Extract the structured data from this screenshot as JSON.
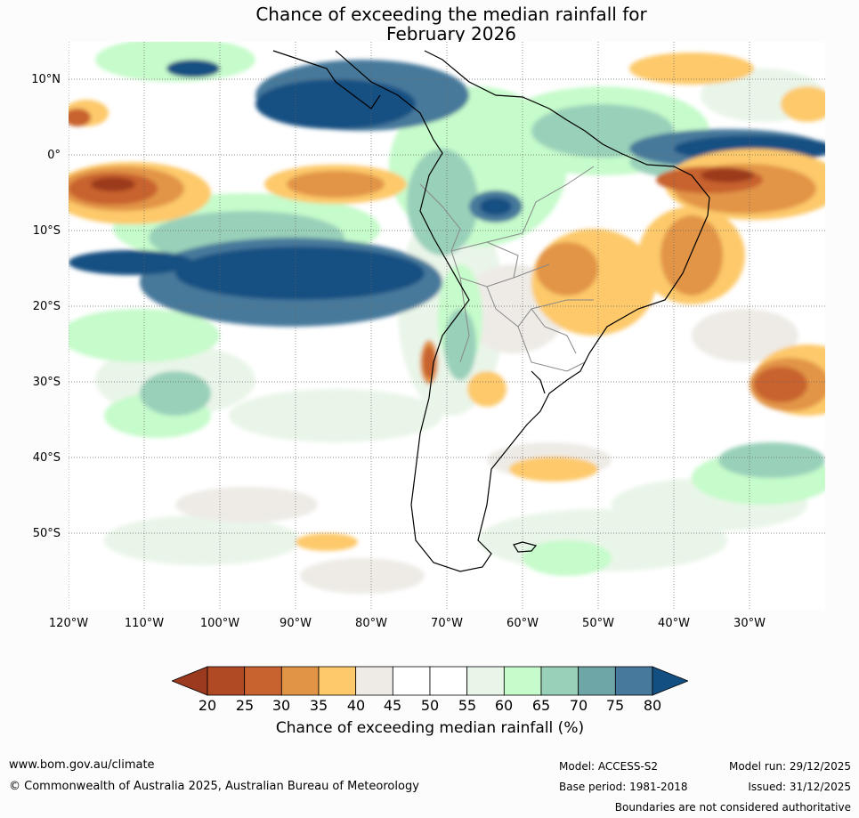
{
  "title": {
    "line1": "Chance of exceeding the median rainfall for",
    "line2": "February 2026"
  },
  "map": {
    "lat_labels": [
      "10°N",
      "0°",
      "10°S",
      "20°S",
      "30°S",
      "40°S",
      "50°S"
    ],
    "lon_labels": [
      "120°W",
      "110°W",
      "100°W",
      "90°W",
      "80°W",
      "70°W",
      "60°W",
      "50°W",
      "40°W",
      "30°W"
    ]
  },
  "colorbar": {
    "ticks": [
      "20",
      "25",
      "30",
      "35",
      "40",
      "45",
      "50",
      "55",
      "60",
      "65",
      "70",
      "75",
      "80"
    ],
    "colors": [
      "#9b3a1f",
      "#b04a24",
      "#c8622e",
      "#e29446",
      "#fdc96b",
      "#eeebe6",
      "#ffffff",
      "#ffffff",
      "#e9f5e8",
      "#c6fbcb",
      "#99d0b9",
      "#6ea6a8",
      "#46799b",
      "#144f82"
    ],
    "label": "Chance of exceeding median rainfall (%)"
  },
  "footer": {
    "website": "www.bom.gov.au/climate",
    "copyright": "© Commonwealth of Australia 2025, Australian Bureau of Meteorology",
    "model": "Model: ACCESS-S2",
    "base_period": "Base period: 1981-2018",
    "model_run": "Model run: 29/12/2025",
    "issued": "Issued: 31/12/2025",
    "disclaimer": "Boundaries are not considered authoritative"
  }
}
